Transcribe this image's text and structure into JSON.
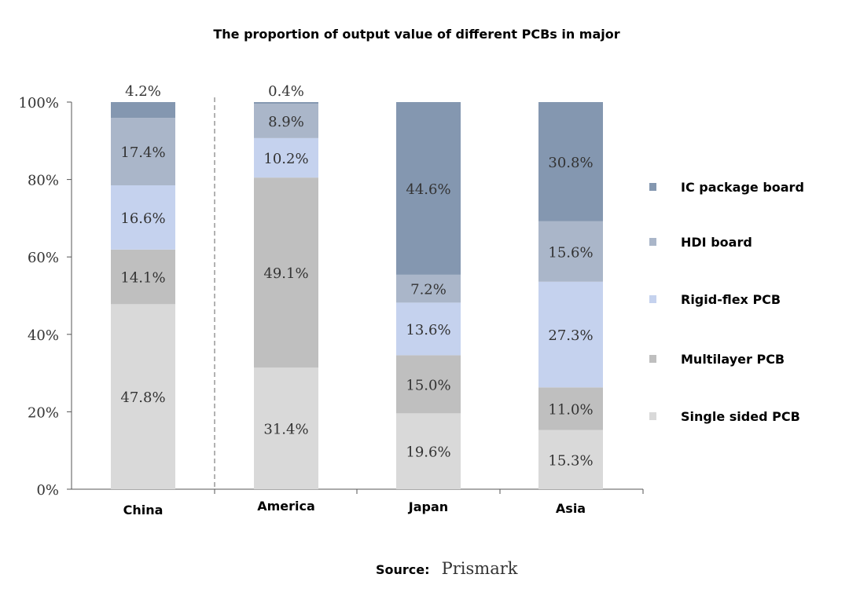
{
  "chart_data": {
    "type": "stacked-bar",
    "title": "The proportion of output value of different PCBs in major",
    "categories": [
      "China",
      "America",
      "Japan",
      "Asia"
    ],
    "ylim": [
      0,
      100
    ],
    "yticks": [
      "0%",
      "20%",
      "40%",
      "60%",
      "80%",
      "100%"
    ],
    "legend_position": "right",
    "series": [
      {
        "name": "Single sided PCB",
        "color": "#d9d9d9",
        "values": [
          47.8,
          31.4,
          19.6,
          15.3
        ],
        "labels": [
          "47.8%",
          "31.4%",
          "19.6%",
          "15.3%"
        ]
      },
      {
        "name": "Multilayer PCB",
        "color": "#bfbfbf",
        "values": [
          14.1,
          49.1,
          15.0,
          11.0
        ],
        "labels": [
          "14.1%",
          "49.1%",
          "15.0%",
          "11.0%"
        ]
      },
      {
        "name": "Rigid-flex PCB",
        "color": "#c5d2ee",
        "values": [
          16.6,
          10.2,
          13.6,
          27.3
        ],
        "labels": [
          "16.6%",
          "10.2%",
          "13.6%",
          "27.3%"
        ]
      },
      {
        "name": "HDI board",
        "color": "#aab6c9",
        "values": [
          17.4,
          8.9,
          7.2,
          15.6
        ],
        "labels": [
          "17.4%",
          "8.9%",
          "7.2%",
          "15.6%"
        ]
      },
      {
        "name": "IC package board",
        "color": "#8497b0",
        "values": [
          4.2,
          0.4,
          44.6,
          30.8
        ],
        "labels": [
          "4.2%",
          "0.4%",
          "44.6%",
          "30.8%"
        ]
      }
    ]
  },
  "source": {
    "label": "Source:",
    "value": "Prismark"
  }
}
